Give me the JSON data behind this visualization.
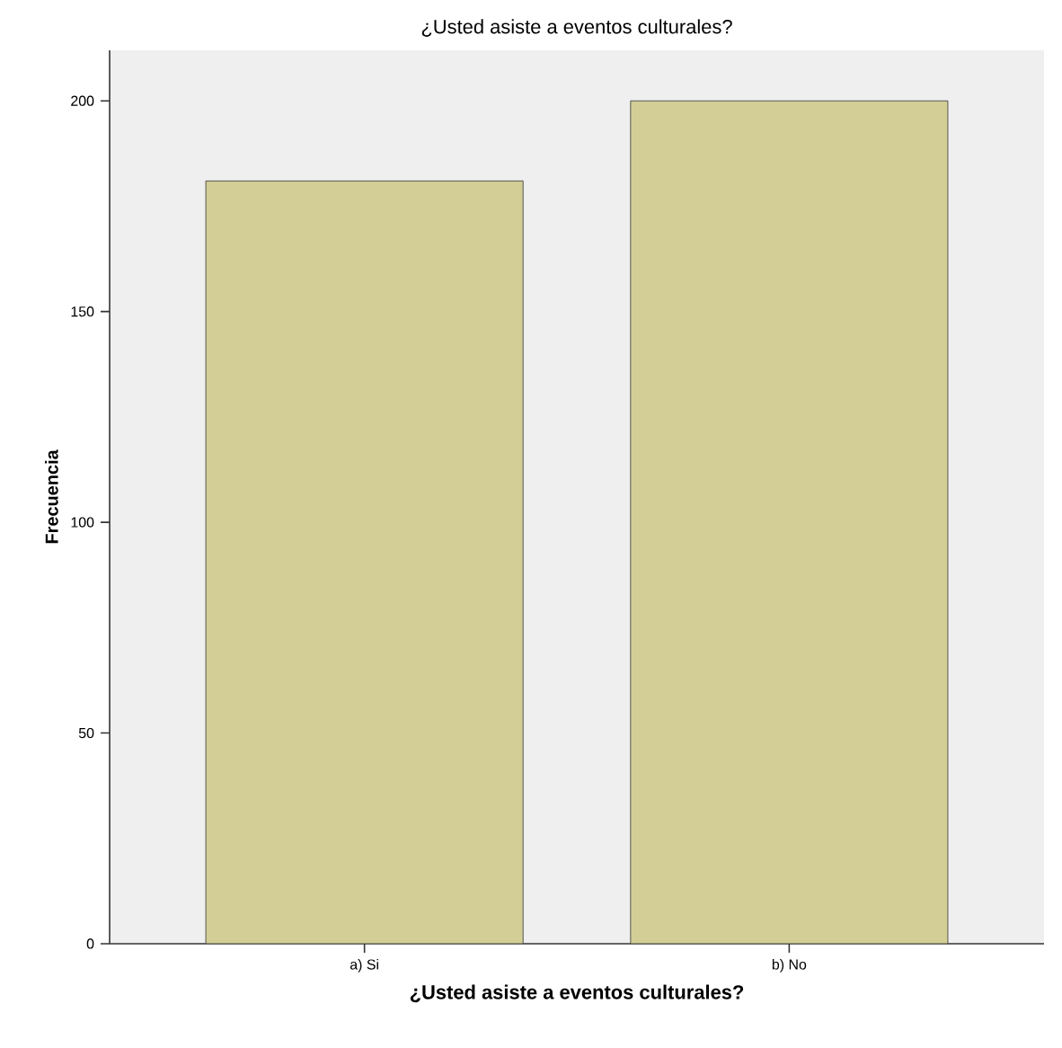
{
  "chart_data": {
    "type": "bar",
    "title": "¿Usted asiste a eventos culturales?",
    "xlabel": "¿Usted asiste a eventos culturales?",
    "ylabel": "Frecuencia",
    "categories": [
      "a) Si",
      "b) No"
    ],
    "values": [
      181,
      200
    ],
    "color": "#d2ce96",
    "ylim": [
      0,
      212
    ],
    "yticks": [
      0,
      50,
      100,
      150,
      200
    ]
  }
}
